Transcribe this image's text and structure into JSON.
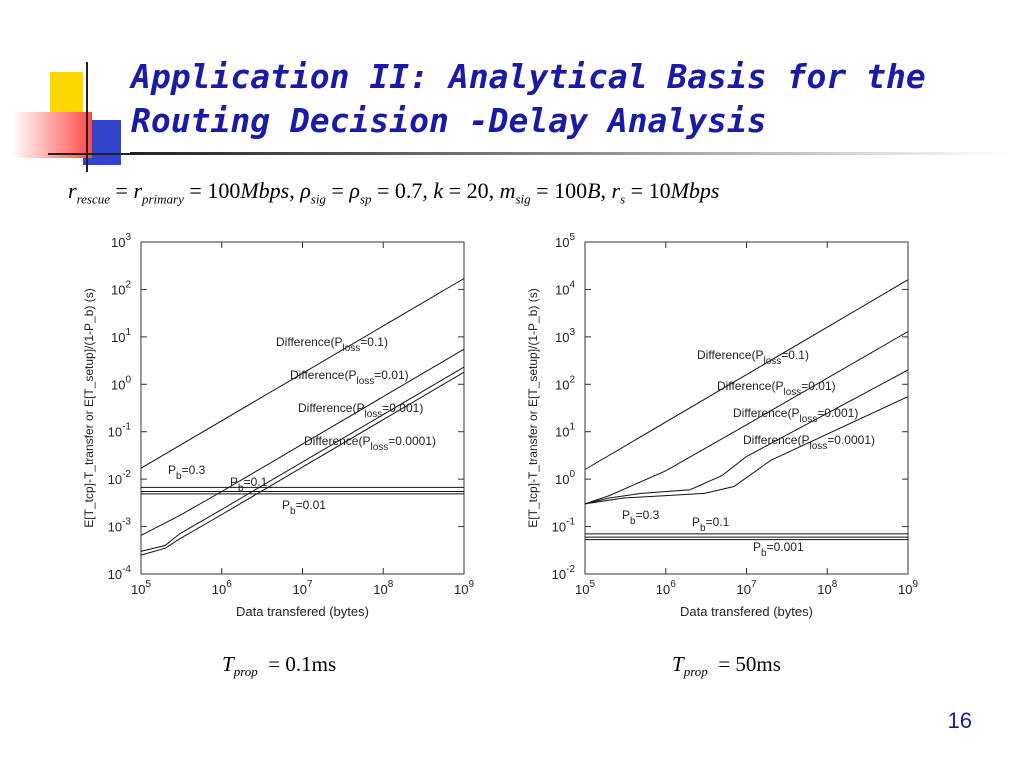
{
  "slide": {
    "title_line1": "Application II: Analytical Basis for the",
    "title_line2": "Routing Decision -Delay Analysis",
    "params": {
      "r_rescue": "r",
      "r_rescue_sub": "rescue",
      "r_primary": "r",
      "r_primary_sub": "primary",
      "r_value": "100",
      "r_unit": "Mbps",
      "rho_sig_sub": "sig",
      "rho_sp_sub": "sp",
      "rho_value": "0.7",
      "k_label": "k",
      "k_value": "20",
      "m_label": "m",
      "m_sub": "sig",
      "m_value": "100",
      "m_unit": "B",
      "rs_label": "r",
      "rs_sub": "s",
      "rs_value": "10",
      "rs_unit": "Mbps"
    },
    "tprop_left": {
      "T": "T",
      "sub": "prop",
      "value": "0.1ms"
    },
    "tprop_right": {
      "T": "T",
      "sub": "prop",
      "value": "50ms"
    },
    "page_number": "16",
    "colors": {
      "title": "#1a1aa8",
      "deco_yellow": "#ffd800",
      "deco_blue": "#3344cc",
      "deco_red": "#ff5050"
    }
  },
  "chart_data": [
    {
      "type": "line",
      "xlabel": "Data transfered (bytes)",
      "ylabel": "E[T_tcp]-T_transfer or E[T_setup]/(1-P_b) (s)",
      "xscale": "log",
      "yscale": "log",
      "xlim": [
        100000,
        1000000000
      ],
      "ylim": [
        0.0001,
        1000
      ],
      "xticks": [
        {
          "base": "10",
          "exp": "5"
        },
        {
          "base": "10",
          "exp": "6"
        },
        {
          "base": "10",
          "exp": "7"
        },
        {
          "base": "10",
          "exp": "8"
        },
        {
          "base": "10",
          "exp": "9"
        }
      ],
      "yticks": [
        {
          "base": "10",
          "exp": "-4"
        },
        {
          "base": "10",
          "exp": "-3"
        },
        {
          "base": "10",
          "exp": "-2"
        },
        {
          "base": "10",
          "exp": "-1"
        },
        {
          "base": "10",
          "exp": "0"
        },
        {
          "base": "10",
          "exp": "1"
        },
        {
          "base": "10",
          "exp": "2"
        },
        {
          "base": "10",
          "exp": "3"
        }
      ],
      "series": [
        {
          "label_pre": "Difference(P",
          "label_sub": "loss",
          "label_post": "=0.1)",
          "points": [
            [
              100000,
              0.017
            ],
            [
              1000000000,
              170
            ]
          ]
        },
        {
          "label_pre": "Difference(P",
          "label_sub": "loss",
          "label_post": "=0.01)",
          "points": [
            [
              100000,
              0.00065
            ],
            [
              300000,
              0.0017
            ],
            [
              1000000,
              0.0055
            ],
            [
              1000000000,
              5.5
            ]
          ]
        },
        {
          "label_pre": "Difference(P",
          "label_sub": "loss",
          "label_post": "=0.001)",
          "points": [
            [
              100000,
              0.0003
            ],
            [
              200000,
              0.0004
            ],
            [
              300000,
              0.0007
            ],
            [
              1000000,
              0.0023
            ],
            [
              1000000000,
              2.3
            ]
          ]
        },
        {
          "label_pre": "Difference(P",
          "label_sub": "loss",
          "label_post": "=0.0001)",
          "points": [
            [
              100000,
              0.00025
            ],
            [
              200000,
              0.00035
            ],
            [
              300000,
              0.00055
            ],
            [
              1000000,
              0.0018
            ],
            [
              1000000000,
              1.8
            ]
          ]
        }
      ],
      "hlines": [
        {
          "label_pre": "P",
          "label_sub": "b",
          "label_post": "=0.3",
          "y": 0.0067
        },
        {
          "label_pre": "P",
          "label_sub": "b",
          "label_post": "=0.1",
          "y": 0.0055
        },
        {
          "label_pre": "P",
          "label_sub": "b",
          "label_post": "=0.01",
          "y": 0.0049
        }
      ]
    },
    {
      "type": "line",
      "xlabel": "Data transfered (bytes)",
      "ylabel": "E[T_tcp]-T_transfer or E[T_setup]/(1-P_b) (s)",
      "xscale": "log",
      "yscale": "log",
      "xlim": [
        100000,
        1000000000
      ],
      "ylim": [
        0.01,
        100000
      ],
      "xticks": [
        {
          "base": "10",
          "exp": "5"
        },
        {
          "base": "10",
          "exp": "6"
        },
        {
          "base": "10",
          "exp": "7"
        },
        {
          "base": "10",
          "exp": "8"
        },
        {
          "base": "10",
          "exp": "9"
        }
      ],
      "yticks": [
        {
          "base": "10",
          "exp": "-2"
        },
        {
          "base": "10",
          "exp": "-1"
        },
        {
          "base": "10",
          "exp": "0"
        },
        {
          "base": "10",
          "exp": "1"
        },
        {
          "base": "10",
          "exp": "2"
        },
        {
          "base": "10",
          "exp": "3"
        },
        {
          "base": "10",
          "exp": "4"
        },
        {
          "base": "10",
          "exp": "5"
        }
      ],
      "series": [
        {
          "label_pre": "Difference(P",
          "label_sub": "loss",
          "label_post": "=0.1)",
          "points": [
            [
              100000,
              1.6
            ],
            [
              1000000000,
              16000
            ]
          ]
        },
        {
          "label_pre": "Difference(P",
          "label_sub": "loss",
          "label_post": "=0.01)",
          "points": [
            [
              100000,
              0.3
            ],
            [
              200000,
              0.45
            ],
            [
              1000000,
              1.5
            ],
            [
              10000000,
              14
            ],
            [
              1000000000,
              1300
            ]
          ]
        },
        {
          "label_pre": "Difference(P",
          "label_sub": "loss",
          "label_post": "=0.001)",
          "points": [
            [
              100000,
              0.3
            ],
            [
              200000,
              0.4
            ],
            [
              500000,
              0.5
            ],
            [
              2000000,
              0.6
            ],
            [
              5000000,
              1.2
            ],
            [
              10000000,
              3
            ],
            [
              1000000000,
              200
            ]
          ]
        },
        {
          "label_pre": "Difference(P",
          "label_sub": "loss",
          "label_post": "=0.0001)",
          "points": [
            [
              100000,
              0.3
            ],
            [
              300000,
              0.4
            ],
            [
              1000000,
              0.45
            ],
            [
              3000000,
              0.5
            ],
            [
              7000000,
              0.7
            ],
            [
              20000000,
              2.5
            ],
            [
              1000000000,
              55
            ]
          ]
        }
      ],
      "hlines": [
        {
          "label_pre": "P",
          "label_sub": "b",
          "label_post": "=0.3",
          "y": 0.07
        },
        {
          "label_pre": "P",
          "label_sub": "b",
          "label_post": "=0.1",
          "y": 0.06
        },
        {
          "label_pre": "P",
          "label_sub": "b",
          "label_post": "=0.001",
          "y": 0.053
        }
      ]
    }
  ]
}
